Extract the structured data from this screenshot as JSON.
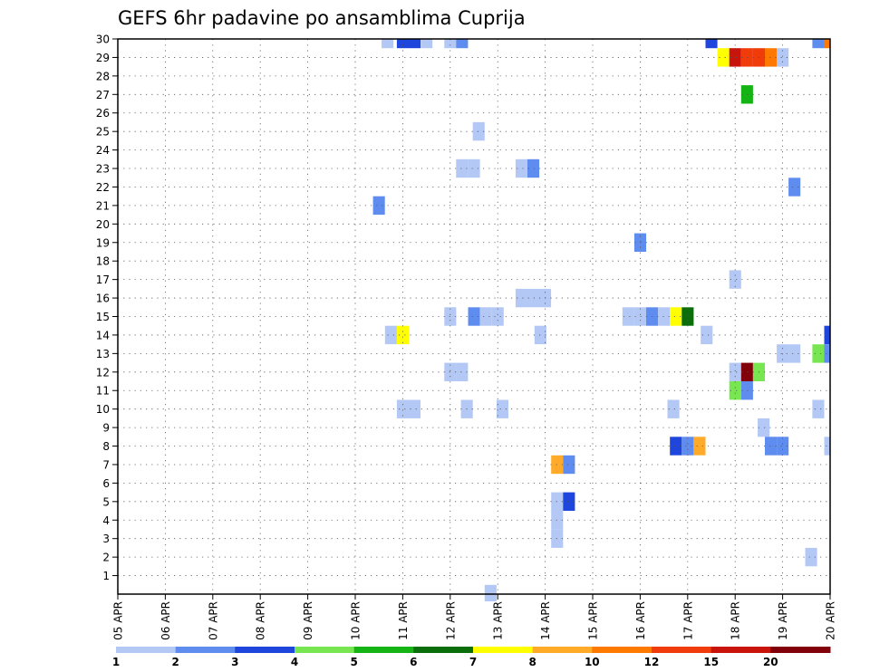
{
  "chart_data": {
    "type": "heatmap",
    "title": "GEFS 6hr padavine po ansamblima Cuprija",
    "y_ticks": [
      "1",
      "2",
      "3",
      "4",
      "5",
      "6",
      "7",
      "8",
      "9",
      "10",
      "11",
      "12",
      "13",
      "14",
      "15",
      "16",
      "17",
      "18",
      "19",
      "20",
      "21",
      "22",
      "23",
      "24",
      "25",
      "26",
      "27",
      "28",
      "29",
      "30"
    ],
    "ylim": [
      0,
      30
    ],
    "x_ticks": [
      "05 APR",
      "06 APR",
      "07 APR",
      "08 APR",
      "09 APR",
      "10 APR",
      "11 APR",
      "12 APR",
      "13 APR",
      "14 APR",
      "15 APR",
      "16 APR",
      "17 APR",
      "18 APR",
      "19 APR",
      "20 APR"
    ],
    "xlim": [
      0,
      15
    ],
    "grid": true,
    "colorbar": {
      "placement": "bottom",
      "bins": [
        {
          "color": "#b4c8f5"
        },
        {
          "color": "#5f8cef"
        },
        {
          "color": "#1e46dc"
        },
        {
          "color": "#78e650"
        },
        {
          "color": "#14b414"
        },
        {
          "color": "#0a6e0a"
        },
        {
          "color": "#ffff00"
        },
        {
          "color": "#ffaa28"
        },
        {
          "color": "#ff7800"
        },
        {
          "color": "#f03c0a"
        },
        {
          "color": "#c8140a"
        },
        {
          "color": "#82000a"
        }
      ],
      "labels": [
        {
          "text": "1",
          "bin_edge": 0
        },
        {
          "text": "2",
          "bin_edge": 1
        },
        {
          "text": "3",
          "bin_edge": 2
        },
        {
          "text": "4",
          "bin_edge": 3
        },
        {
          "text": "5",
          "bin_edge": 4
        },
        {
          "text": "6",
          "bin_edge": 5
        },
        {
          "text": "7",
          "bin_edge": 6
        },
        {
          "text": "8",
          "bin_edge": 7
        },
        {
          "text": "10",
          "bin_edge": 8
        },
        {
          "text": "12",
          "bin_edge": 9
        },
        {
          "text": "15",
          "bin_edge": 10
        },
        {
          "text": "20",
          "bin_edge": 11
        }
      ]
    },
    "cells": [
      {
        "x": 5.68,
        "y": 30,
        "c": 1
      },
      {
        "x": 6.0,
        "y": 30,
        "c": 3
      },
      {
        "x": 6.25,
        "y": 30,
        "c": 3
      },
      {
        "x": 6.5,
        "y": 30,
        "c": 1
      },
      {
        "x": 7.0,
        "y": 30,
        "c": 1
      },
      {
        "x": 7.25,
        "y": 30,
        "c": 2
      },
      {
        "x": 12.5,
        "y": 30,
        "c": 3
      },
      {
        "x": 14.75,
        "y": 30,
        "c": 2
      },
      {
        "x": 15.0,
        "y": 30,
        "c": 9
      },
      {
        "x": 12.75,
        "y": 29,
        "c": 7
      },
      {
        "x": 13.0,
        "y": 29,
        "c": 11
      },
      {
        "x": 13.25,
        "y": 29,
        "c": 10
      },
      {
        "x": 13.5,
        "y": 29,
        "c": 10
      },
      {
        "x": 13.75,
        "y": 29,
        "c": 9
      },
      {
        "x": 14.0,
        "y": 29,
        "c": 1
      },
      {
        "x": 13.25,
        "y": 27,
        "c": 5
      },
      {
        "x": 7.6,
        "y": 25,
        "c": 1
      },
      {
        "x": 7.25,
        "y": 23,
        "c": 1
      },
      {
        "x": 7.5,
        "y": 23,
        "c": 1
      },
      {
        "x": 8.5,
        "y": 23,
        "c": 1
      },
      {
        "x": 8.75,
        "y": 23,
        "c": 2
      },
      {
        "x": 14.25,
        "y": 22,
        "c": 2
      },
      {
        "x": 5.5,
        "y": 21,
        "c": 2
      },
      {
        "x": 11.0,
        "y": 19,
        "c": 2
      },
      {
        "x": 13.0,
        "y": 17,
        "c": 1
      },
      {
        "x": 8.5,
        "y": 16,
        "c": 1
      },
      {
        "x": 8.75,
        "y": 16,
        "c": 1
      },
      {
        "x": 9.0,
        "y": 16,
        "c": 1
      },
      {
        "x": 7.0,
        "y": 15,
        "c": 1
      },
      {
        "x": 7.5,
        "y": 15,
        "c": 2
      },
      {
        "x": 7.75,
        "y": 15,
        "c": 1
      },
      {
        "x": 8.0,
        "y": 15,
        "c": 1
      },
      {
        "x": 10.75,
        "y": 15,
        "c": 1
      },
      {
        "x": 11.0,
        "y": 15,
        "c": 1
      },
      {
        "x": 11.25,
        "y": 15,
        "c": 2
      },
      {
        "x": 11.5,
        "y": 15,
        "c": 1
      },
      {
        "x": 11.75,
        "y": 15,
        "c": 7
      },
      {
        "x": 12.0,
        "y": 15,
        "c": 6
      },
      {
        "x": 5.75,
        "y": 14,
        "c": 1
      },
      {
        "x": 6.0,
        "y": 14,
        "c": 7
      },
      {
        "x": 8.9,
        "y": 14,
        "c": 1
      },
      {
        "x": 12.4,
        "y": 14,
        "c": 1
      },
      {
        "x": 15.0,
        "y": 14,
        "c": 3
      },
      {
        "x": 14.75,
        "y": 13,
        "c": 4
      },
      {
        "x": 15.0,
        "y": 13,
        "c": 2
      },
      {
        "x": 14.0,
        "y": 13,
        "c": 1
      },
      {
        "x": 14.25,
        "y": 13,
        "c": 1
      },
      {
        "x": 13.0,
        "y": 12,
        "c": 1
      },
      {
        "x": 13.25,
        "y": 12,
        "c": 12
      },
      {
        "x": 13.5,
        "y": 12,
        "c": 4
      },
      {
        "x": 7.0,
        "y": 12,
        "c": 1
      },
      {
        "x": 7.25,
        "y": 12,
        "c": 1
      },
      {
        "x": 13.0,
        "y": 11,
        "c": 4
      },
      {
        "x": 13.25,
        "y": 11,
        "c": 2
      },
      {
        "x": 6.0,
        "y": 10,
        "c": 1
      },
      {
        "x": 6.25,
        "y": 10,
        "c": 1
      },
      {
        "x": 7.35,
        "y": 10,
        "c": 1
      },
      {
        "x": 8.1,
        "y": 10,
        "c": 1
      },
      {
        "x": 11.7,
        "y": 10,
        "c": 1
      },
      {
        "x": 14.75,
        "y": 10,
        "c": 1
      },
      {
        "x": 13.6,
        "y": 9,
        "c": 1
      },
      {
        "x": 11.75,
        "y": 8,
        "c": 3
      },
      {
        "x": 12.0,
        "y": 8,
        "c": 2
      },
      {
        "x": 12.25,
        "y": 8,
        "c": 8
      },
      {
        "x": 13.75,
        "y": 8,
        "c": 2
      },
      {
        "x": 14.0,
        "y": 8,
        "c": 2
      },
      {
        "x": 15.0,
        "y": 8,
        "c": 1
      },
      {
        "x": 9.25,
        "y": 7,
        "c": 8
      },
      {
        "x": 9.5,
        "y": 7,
        "c": 2
      },
      {
        "x": 9.25,
        "y": 5,
        "c": 1
      },
      {
        "x": 9.5,
        "y": 5,
        "c": 3
      },
      {
        "x": 9.25,
        "y": 4,
        "c": 1
      },
      {
        "x": 9.25,
        "y": 3,
        "c": 1
      },
      {
        "x": 14.6,
        "y": 2,
        "c": 1
      },
      {
        "x": 7.85,
        "y": 0,
        "c": 1
      }
    ]
  }
}
